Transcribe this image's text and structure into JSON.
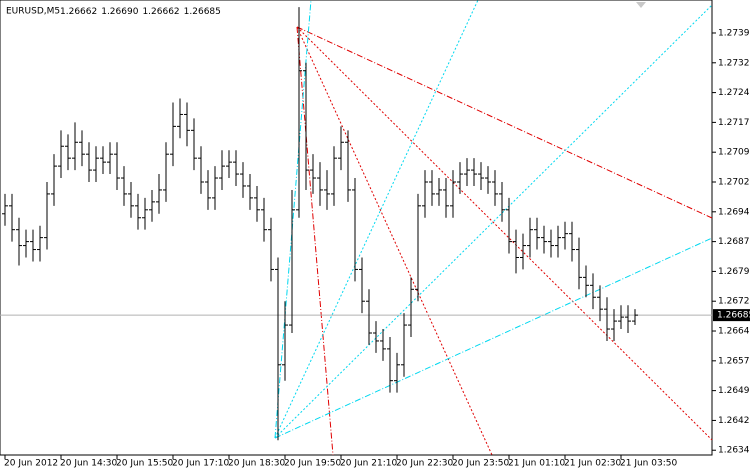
{
  "chart_data": {
    "type": "ohlc",
    "title": "EURUSD,M5",
    "header_prices": [
      "1.26662",
      "1.26690",
      "1.26662",
      "1.26685"
    ],
    "categories": [
      "20 Jun 2012",
      null,
      null,
      null,
      null,
      null,
      null,
      null,
      "20 Jun 14:30",
      null,
      null,
      null,
      null,
      null,
      null,
      null,
      "20 Jun 15:50",
      null,
      null,
      null,
      null,
      null,
      null,
      null,
      "20 Jun 17:10",
      null,
      null,
      null,
      null,
      null,
      null,
      null,
      "20 Jun 18:30",
      null,
      null,
      null,
      null,
      null,
      null,
      null,
      "20 Jun 19:50",
      null,
      null,
      null,
      null,
      null,
      null,
      null,
      "20 Jun 21:10",
      null,
      null,
      null,
      null,
      null,
      null,
      null,
      "20 Jun 22:30",
      null,
      null,
      null,
      null,
      null,
      null,
      null,
      "20 Jun 23:50",
      null,
      null,
      null,
      null,
      null,
      null,
      null,
      "21 Jun 01:10",
      null,
      null,
      null,
      null,
      null,
      null,
      null,
      "21 Jun 02:30",
      null,
      null,
      null,
      null,
      null,
      null,
      null,
      "21 Jun 03:50",
      null,
      null
    ],
    "open": [
      1.2694,
      1.2696,
      1.269,
      1.2686,
      1.2687,
      1.2685,
      1.2688,
      1.2699,
      1.2706,
      1.2711,
      1.2708,
      1.2712,
      1.2709,
      1.2705,
      1.2708,
      1.2707,
      1.2709,
      1.2703,
      1.2699,
      1.2696,
      1.2693,
      1.2695,
      1.2697,
      1.27,
      1.2709,
      1.2716,
      1.2719,
      1.2715,
      1.2708,
      1.2702,
      1.2698,
      1.2703,
      1.2706,
      1.2707,
      1.2704,
      1.2701,
      1.2698,
      1.2695,
      1.269,
      1.268,
      1.2656,
      1.2666,
      1.2695,
      1.273,
      1.2705,
      1.2703,
      1.27,
      1.2699,
      1.2708,
      1.2712,
      1.27,
      1.268,
      1.2672,
      1.2664,
      1.2662,
      1.266,
      1.2652,
      1.2656,
      1.2666,
      1.2675,
      1.2696,
      1.2702,
      1.2699,
      1.27,
      1.2696,
      1.2702,
      1.2704,
      1.2705,
      1.2704,
      1.2703,
      1.2702,
      1.2699,
      1.2695,
      1.2687,
      1.2683,
      1.2686,
      1.269,
      1.2688,
      1.2687,
      1.2686,
      1.2688,
      1.2689,
      1.2685,
      1.2678,
      1.2676,
      1.2673,
      1.267,
      1.2665,
      1.2667,
      1.2668,
      1.2667
    ],
    "high": [
      1.2699,
      1.2699,
      1.2693,
      1.269,
      1.269,
      1.2691,
      1.2702,
      1.2709,
      1.2715,
      1.2714,
      1.2717,
      1.2715,
      1.2712,
      1.2711,
      1.2711,
      1.2712,
      1.2712,
      1.2706,
      1.2702,
      1.2699,
      1.2698,
      1.27,
      1.2704,
      1.2712,
      1.2722,
      1.2723,
      1.2722,
      1.2718,
      1.2711,
      1.2705,
      1.2706,
      1.271,
      1.271,
      1.271,
      1.2707,
      1.2704,
      1.2701,
      1.2698,
      1.2693,
      1.2683,
      1.2672,
      1.27,
      1.2746,
      1.2732,
      1.2709,
      1.2707,
      1.2705,
      1.2711,
      1.2716,
      1.2715,
      1.2703,
      1.2683,
      1.2675,
      1.2667,
      1.2665,
      1.2663,
      1.2659,
      1.2669,
      1.2678,
      1.2699,
      1.2705,
      1.2705,
      1.2703,
      1.2703,
      1.2705,
      1.2707,
      1.2708,
      1.2708,
      1.2707,
      1.2706,
      1.2705,
      1.2702,
      1.2698,
      1.269,
      1.2689,
      1.2693,
      1.2693,
      1.2691,
      1.269,
      1.2691,
      1.2692,
      1.2692,
      1.2688,
      1.2681,
      1.2679,
      1.2676,
      1.2673,
      1.267,
      1.2671,
      1.2671,
      1.267
    ],
    "low": [
      1.2691,
      1.2687,
      1.2681,
      1.2683,
      1.2682,
      1.2682,
      1.2685,
      1.2696,
      1.2703,
      1.2705,
      1.2705,
      1.2706,
      1.2702,
      1.2702,
      1.2704,
      1.2704,
      1.27,
      1.2696,
      1.2693,
      1.269,
      1.269,
      1.2692,
      1.2694,
      1.2697,
      1.2706,
      1.2713,
      1.2711,
      1.2705,
      1.2699,
      1.2695,
      1.2695,
      1.27,
      1.2703,
      1.2701,
      1.2698,
      1.2695,
      1.2692,
      1.2687,
      1.2677,
      1.2637,
      1.2652,
      1.2664,
      1.2693,
      1.27,
      1.2699,
      1.2696,
      1.2695,
      1.2696,
      1.2705,
      1.2697,
      1.2677,
      1.2669,
      1.2661,
      1.2659,
      1.2657,
      1.2649,
      1.2649,
      1.2653,
      1.2663,
      1.2672,
      1.2693,
      1.2696,
      1.2696,
      1.2693,
      1.2693,
      1.2699,
      1.2701,
      1.2701,
      1.27,
      1.2699,
      1.2696,
      1.2692,
      1.2684,
      1.2679,
      1.268,
      1.2683,
      1.2685,
      1.2684,
      1.2683,
      1.2683,
      1.2685,
      1.2682,
      1.2675,
      1.2673,
      1.267,
      1.2667,
      1.2662,
      1.2662,
      1.2665,
      1.2664,
      1.2666
    ],
    "close": [
      1.2696,
      1.269,
      1.2686,
      1.2687,
      1.2685,
      1.2688,
      1.2699,
      1.2706,
      1.2711,
      1.2708,
      1.2712,
      1.2709,
      1.2705,
      1.2708,
      1.2707,
      1.2709,
      1.2703,
      1.2699,
      1.2696,
      1.2693,
      1.2695,
      1.2697,
      1.27,
      1.2709,
      1.2716,
      1.2719,
      1.2715,
      1.2708,
      1.2702,
      1.2698,
      1.2703,
      1.2706,
      1.2707,
      1.2704,
      1.2701,
      1.2698,
      1.2695,
      1.269,
      1.268,
      1.2656,
      1.2666,
      1.2695,
      1.273,
      1.2705,
      1.2703,
      1.27,
      1.2699,
      1.2708,
      1.2712,
      1.27,
      1.268,
      1.2672,
      1.2664,
      1.2662,
      1.266,
      1.2652,
      1.2656,
      1.2666,
      1.2675,
      1.2696,
      1.2702,
      1.2699,
      1.27,
      1.2696,
      1.2702,
      1.2704,
      1.2705,
      1.2704,
      1.2703,
      1.2702,
      1.2699,
      1.2695,
      1.2687,
      1.2683,
      1.2686,
      1.269,
      1.2688,
      1.2687,
      1.2686,
      1.2688,
      1.2689,
      1.2685,
      1.2678,
      1.2676,
      1.2673,
      1.267,
      1.2665,
      1.2667,
      1.2668,
      1.2667,
      1.26685
    ],
    "last_price": 1.26685,
    "color": "#000000",
    "ylim": [
      1.26333,
      1.27478
    ],
    "yticks": [
      1.27395,
      {
        "value": 1.2732,
        "label": "1.27320"
      },
      1.27245,
      {
        "value": 1.2717,
        "label": "1.27170"
      },
      1.27095,
      {
        "value": 1.2702,
        "label": "1.27020"
      },
      1.26945,
      {
        "value": 1.2687,
        "label": "1.26870"
      },
      1.26795,
      {
        "value": 1.2672,
        "label": "1.26720"
      },
      1.26645,
      {
        "value": 1.2657,
        "label": "1.26570"
      },
      1.26495,
      {
        "value": 1.2642,
        "label": "1.26420"
      },
      1.26345
    ]
  }
}
